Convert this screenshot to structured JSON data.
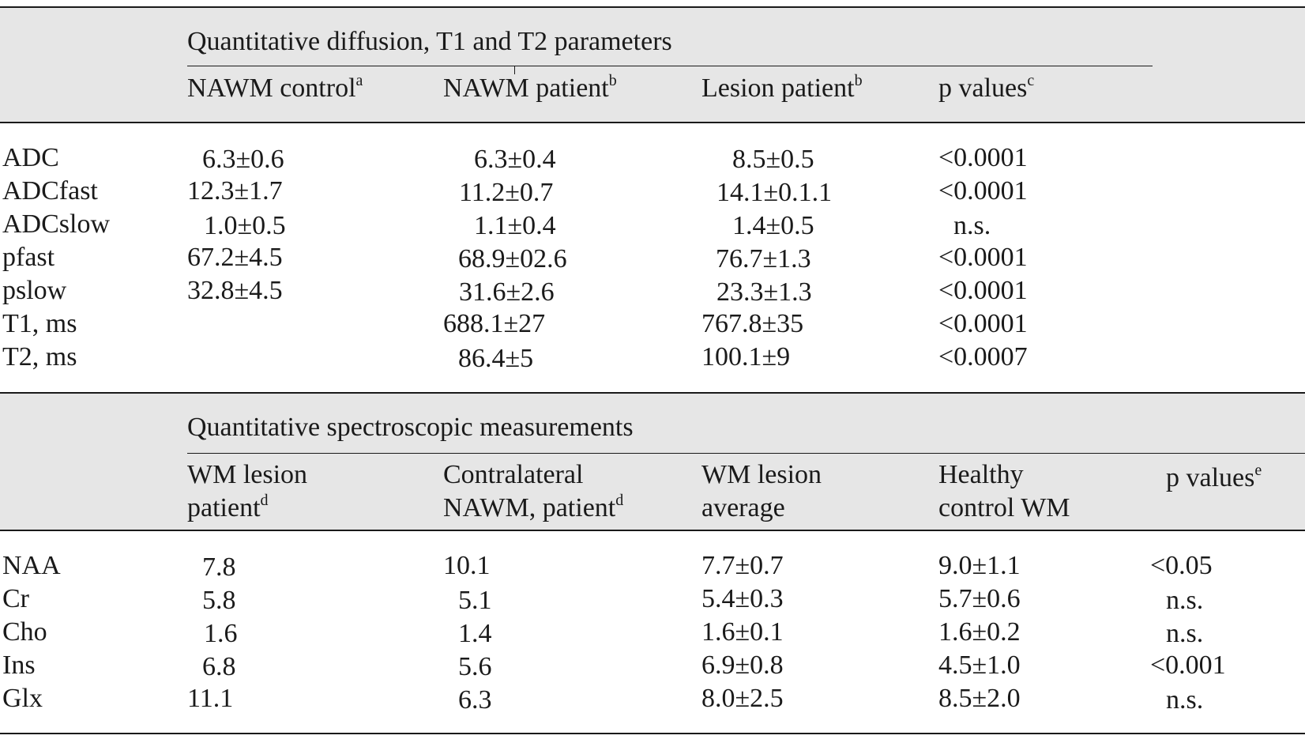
{
  "section1": {
    "title": "Quantitative diffusion, T1 and T2 parameters",
    "headers": [
      {
        "text": "NAWM control",
        "sup": "a"
      },
      {
        "text": "NAWM patient",
        "sup": "b"
      },
      {
        "text": "Lesion patient",
        "sup": "b"
      },
      {
        "text": "p values",
        "sup": "c"
      }
    ],
    "rows": [
      {
        "label": "ADC",
        "cells": [
          "6.3±0.6",
          "6.3±0.4",
          "8.5±0.5",
          "<0.0001"
        ]
      },
      {
        "label": "ADCfast",
        "cells": [
          "12.3±1.7",
          "11.2±0.7",
          "14.1±0.1.1",
          "<0.0001"
        ]
      },
      {
        "label": "ADCslow",
        "cells": [
          "1.0±0.5",
          "1.1±0.4",
          "1.4±0.5",
          "n.s."
        ]
      },
      {
        "label": "pfast",
        "cells": [
          "67.2±4.5",
          "68.9±02.6",
          "76.7±1.3",
          "<0.0001"
        ]
      },
      {
        "label": "pslow",
        "cells": [
          "32.8±4.5",
          "31.6±2.6",
          "23.3±1.3",
          "<0.0001"
        ]
      },
      {
        "label": "T1, ms",
        "cells": [
          "",
          "688.1±27",
          "767.8±35",
          "<0.0001"
        ]
      },
      {
        "label": "T2, ms",
        "cells": [
          "",
          "86.4±5",
          "100.1±9",
          "<0.0007"
        ]
      }
    ]
  },
  "section2": {
    "title": "Quantitative spectroscopic measurements",
    "headers": [
      {
        "line1": "WM lesion",
        "line2": "patient",
        "sup": "d"
      },
      {
        "line1": "Contralateral",
        "line2": "NAWM, patient",
        "sup": "d"
      },
      {
        "line1": "WM lesion",
        "line2": "average",
        "sup": ""
      },
      {
        "line1": "Healthy",
        "line2": "control WM",
        "sup": ""
      },
      {
        "line1": "p values",
        "line2": "",
        "sup": "e"
      }
    ],
    "rows": [
      {
        "label": "NAA",
        "cells": [
          "7.8",
          "10.1",
          "7.7±0.7",
          "9.0±1.1",
          "<0.05"
        ]
      },
      {
        "label": "Cr",
        "cells": [
          "5.8",
          "5.1",
          "5.4±0.3",
          "5.7±0.6",
          "n.s."
        ]
      },
      {
        "label": "Cho",
        "cells": [
          "1.6",
          "1.4",
          "1.6±0.1",
          "1.6±0.2",
          "n.s."
        ]
      },
      {
        "label": "Ins",
        "cells": [
          "6.8",
          "5.6",
          "6.9±0.8",
          "4.5±1.0",
          "<0.001"
        ]
      },
      {
        "label": "Glx",
        "cells": [
          "11.1",
          "6.3",
          "8.0±2.5",
          "8.5±2.0",
          "n.s."
        ]
      }
    ]
  }
}
